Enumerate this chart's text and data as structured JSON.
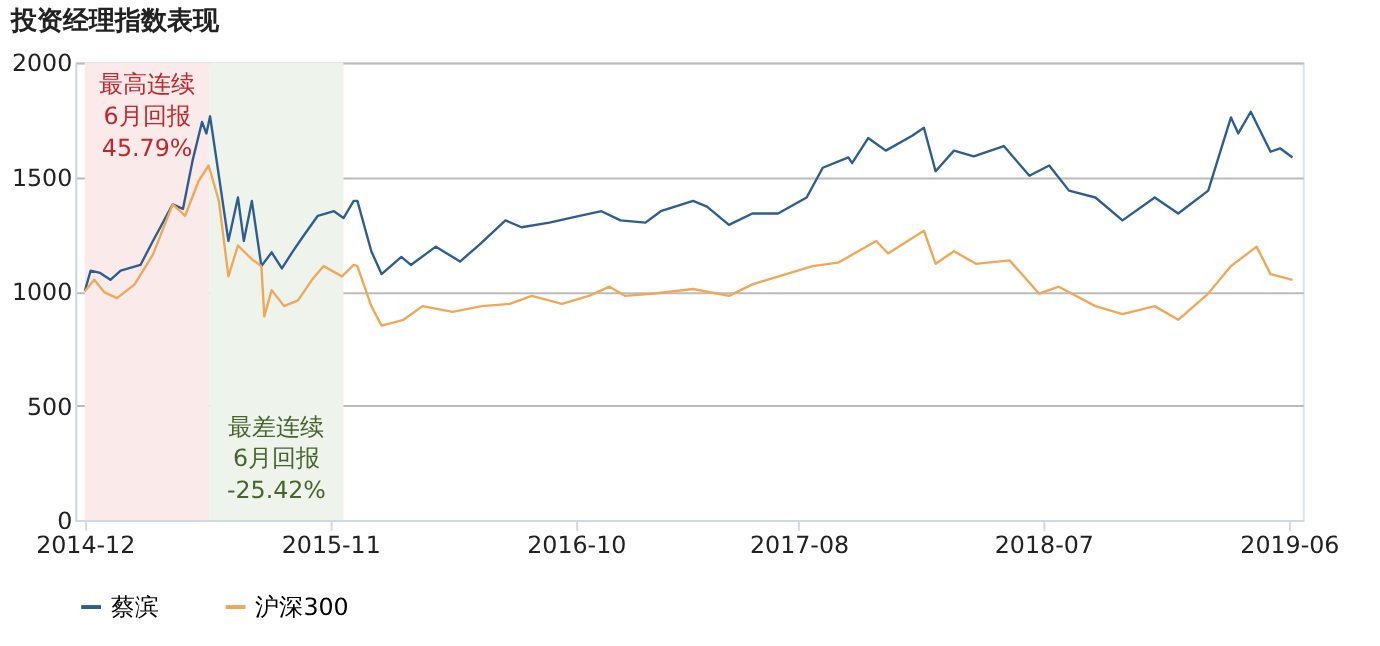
{
  "chart_data": {
    "type": "line",
    "title": "投资经理指数表现",
    "xlim": [
      "2014-11-18",
      "2019-06-20"
    ],
    "xticks": [
      {
        "value": "2014-12-01",
        "label": "2014-12"
      },
      {
        "value": "2015-11-01",
        "label": "2015-11"
      },
      {
        "value": "2016-10-01",
        "label": "2016-10"
      },
      {
        "value": "2017-08-01",
        "label": "2017-08"
      },
      {
        "value": "2018-07-01",
        "label": "2018-07"
      },
      {
        "value": "2019-06-01",
        "label": "2019-06"
      }
    ],
    "ylim": [
      0,
      2000
    ],
    "yticks": [
      0,
      500,
      1000,
      1500,
      2000
    ],
    "grid": "y",
    "legend": "bottom",
    "bands": [
      {
        "axis": "x",
        "from": "2014-12-01",
        "to": "2015-05-20",
        "label": "最高连续\n6月回报\n45.79%",
        "color": "#fbeaea"
      },
      {
        "axis": "x",
        "from": "2015-05-20",
        "to": "2015-11-19",
        "label": "最差连续\n6月回报\n-25.42%",
        "color": "#eef3ec"
      }
    ],
    "series": [
      {
        "name": "蔡滨",
        "color": "#2d5e8e",
        "x": [
          "2014-12-01",
          "2014-12-09",
          "2014-12-22",
          "2015-01-05",
          "2015-01-19",
          "2015-02-15",
          "2015-03-04",
          "2015-03-31",
          "2015-04-14",
          "2015-04-27",
          "2015-05-10",
          "2015-05-16",
          "2015-05-21",
          "2015-06-02",
          "2015-06-15",
          "2015-06-28",
          "2015-07-06",
          "2015-07-17",
          "2015-07-30",
          "2015-08-13",
          "2015-08-27",
          "2015-09-10",
          "2015-09-26",
          "2015-10-15",
          "2015-11-06",
          "2015-11-19",
          "2015-12-03",
          "2015-12-08",
          "2015-12-27",
          "2016-01-10",
          "2016-02-06",
          "2016-02-19",
          "2016-03-24",
          "2016-04-26",
          "2016-05-23",
          "2016-06-27",
          "2016-07-19",
          "2016-08-26",
          "2016-09-30",
          "2016-11-05",
          "2016-12-01",
          "2017-01-04",
          "2017-01-25",
          "2017-03-10",
          "2017-03-29",
          "2017-04-28",
          "2017-05-30",
          "2017-07-04",
          "2017-08-12",
          "2017-09-03",
          "2017-10-08",
          "2017-10-13",
          "2017-11-04",
          "2017-11-28",
          "2018-01-03",
          "2018-01-19",
          "2018-02-04",
          "2018-03-01",
          "2018-03-28",
          "2018-05-08",
          "2018-06-12",
          "2018-07-09",
          "2018-08-05",
          "2018-09-10",
          "2018-10-17",
          "2018-11-30",
          "2019-01-01",
          "2019-02-11",
          "2019-02-25",
          "2019-03-14",
          "2019-03-24",
          "2019-04-10",
          "2019-05-07",
          "2019-05-20",
          "2019-06-06"
        ],
        "values": [
          1000,
          1090,
          1080,
          1050,
          1090,
          1115,
          1220,
          1380,
          1360,
          1570,
          1740,
          1690,
          1765,
          1505,
          1220,
          1410,
          1220,
          1395,
          1110,
          1170,
          1100,
          1170,
          1245,
          1330,
          1350,
          1320,
          1395,
          1395,
          1175,
          1075,
          1150,
          1115,
          1195,
          1130,
          1205,
          1310,
          1280,
          1300,
          1325,
          1350,
          1310,
          1300,
          1350,
          1395,
          1370,
          1290,
          1340,
          1340,
          1410,
          1540,
          1585,
          1560,
          1670,
          1615,
          1680,
          1715,
          1525,
          1615,
          1590,
          1635,
          1505,
          1550,
          1440,
          1410,
          1310,
          1410,
          1340,
          1440,
          1585,
          1760,
          1690,
          1785,
          1610,
          1625,
          1585
        ]
      },
      {
        "name": "沪深300",
        "color": "#f0a858",
        "x": [
          "2014-12-01",
          "2014-12-14",
          "2014-12-28",
          "2015-01-14",
          "2015-02-07",
          "2015-03-04",
          "2015-03-31",
          "2015-04-17",
          "2015-05-05",
          "2015-05-19",
          "2015-06-02",
          "2015-06-15",
          "2015-06-28",
          "2015-07-17",
          "2015-07-30",
          "2015-08-03",
          "2015-08-13",
          "2015-08-30",
          "2015-09-18",
          "2015-10-07",
          "2015-10-23",
          "2015-11-17",
          "2015-12-03",
          "2015-12-08",
          "2015-12-27",
          "2016-01-10",
          "2016-02-09",
          "2016-03-06",
          "2016-04-16",
          "2016-05-26",
          "2016-07-03",
          "2016-08-02",
          "2016-09-12",
          "2016-10-19",
          "2016-11-16",
          "2016-12-07",
          "2017-01-17",
          "2017-03-10",
          "2017-04-28",
          "2017-05-30",
          "2017-07-15",
          "2017-08-20",
          "2017-09-24",
          "2017-11-15",
          "2017-12-01",
          "2018-01-19",
          "2018-02-04",
          "2018-03-01",
          "2018-03-31",
          "2018-05-16",
          "2018-06-25",
          "2018-07-22",
          "2018-09-10",
          "2018-10-17",
          "2018-11-30",
          "2019-01-01",
          "2019-02-11",
          "2019-03-14",
          "2019-04-18",
          "2019-05-07",
          "2019-06-06"
        ],
        "values": [
          1000,
          1050,
          995,
          970,
          1030,
          1160,
          1380,
          1330,
          1480,
          1550,
          1395,
          1065,
          1200,
          1140,
          1110,
          890,
          1005,
          935,
          960,
          1050,
          1110,
          1065,
          1115,
          1110,
          935,
          850,
          875,
          935,
          910,
          935,
          945,
          980,
          945,
          980,
          1020,
          980,
          990,
          1010,
          980,
          1030,
          1075,
          1110,
          1125,
          1220,
          1165,
          1265,
          1120,
          1175,
          1120,
          1135,
          990,
          1020,
          935,
          900,
          935,
          875,
          990,
          1110,
          1195,
          1075,
          1050
        ]
      }
    ]
  }
}
